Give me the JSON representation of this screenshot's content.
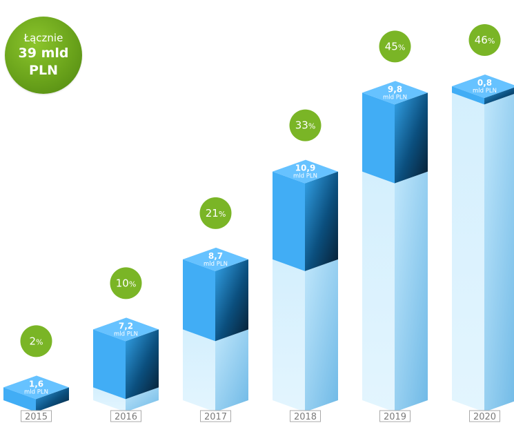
{
  "total": {
    "label": "Łącznie",
    "value": "39 mld",
    "unit": "PLN"
  },
  "colors": {
    "badge": "#7ab526",
    "new_top": "#66c2ff",
    "new_front": "#41adf5",
    "prev_front": "#d8f1fd",
    "year_box_border": "#a8a8a8",
    "year_text": "#7a7a7a"
  },
  "chart_data": {
    "type": "bar",
    "title": "",
    "categories": [
      "2015",
      "2016",
      "2017",
      "2018",
      "2019",
      "2020"
    ],
    "series": [
      {
        "values": [
          0,
          1.6,
          8.8,
          17.5,
          28.4,
          38.2
        ]
      },
      {
        "values": [
          1.6,
          7.2,
          8.7,
          10.9,
          9.8,
          0.8
        ]
      }
    ],
    "value_labels": [
      "1,6",
      "7,2",
      "8,7",
      "10,9",
      "9,8",
      "0,8"
    ],
    "value_unit": "mld PLN",
    "percent_labels": [
      "2",
      "10",
      "21",
      "33",
      "45",
      "46"
    ],
    "percent_sign": "%",
    "ylim": [
      0,
      39
    ]
  }
}
